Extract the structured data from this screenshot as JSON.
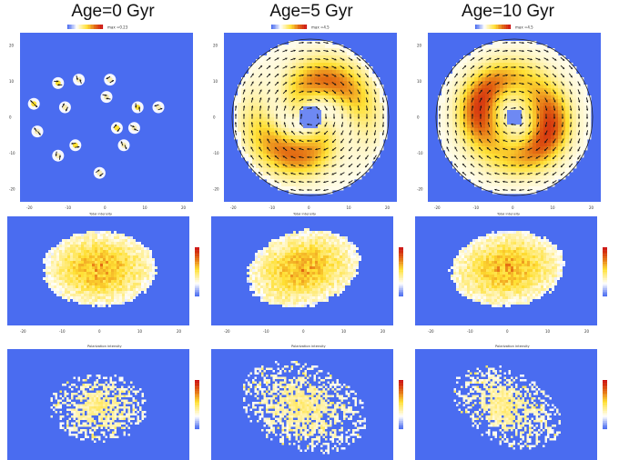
{
  "columns": [
    {
      "title": "Age=0 Gyr",
      "colorbar_max": "max =0.23"
    },
    {
      "title": "Age=5 Gyr",
      "colorbar_max": "max =4.5"
    },
    {
      "title": "Age=10 Gyr",
      "colorbar_max": "max =4.5"
    }
  ],
  "row_titles": {
    "intensity": "Total intensity",
    "polarization": "Polarization intensity"
  },
  "axis_ticks": {
    "top_x": [
      "-20",
      "-10",
      "0",
      "10",
      "20"
    ],
    "top_y": [
      "20",
      "10",
      "0",
      "-10",
      "-20"
    ],
    "mid_x": [
      "-20",
      "-10",
      "0",
      "10",
      "20"
    ]
  },
  "colors": {
    "background": "#4a6cf0",
    "low": "#ffffff",
    "mid": "#ffe033",
    "high": "#e06010",
    "max": "#cc1010",
    "vector": "#111111"
  },
  "chart_data": [
    {
      "type": "heatmap",
      "panel": "velocity-field",
      "age_gyr": 0,
      "field": "star-forming clumps with rotation vectors",
      "n_clumps": 15,
      "max": 0.23,
      "xlim": [
        -25,
        25
      ],
      "ylim": [
        -25,
        25
      ]
    },
    {
      "type": "heatmap",
      "panel": "velocity-field",
      "age_gyr": 5,
      "field": "two-armed spiral",
      "max": 4.5,
      "xlim": [
        -25,
        25
      ],
      "ylim": [
        -25,
        25
      ]
    },
    {
      "type": "heatmap",
      "panel": "velocity-field",
      "age_gyr": 10,
      "field": "wound ring/spiral",
      "max": 4.5,
      "xlim": [
        -25,
        25
      ],
      "ylim": [
        -25,
        25
      ]
    },
    {
      "type": "heatmap",
      "panel": "total-intensity",
      "age_gyr": 0
    },
    {
      "type": "heatmap",
      "panel": "total-intensity",
      "age_gyr": 5
    },
    {
      "type": "heatmap",
      "panel": "total-intensity",
      "age_gyr": 10
    },
    {
      "type": "heatmap",
      "panel": "polarization-intensity",
      "age_gyr": 0
    },
    {
      "type": "heatmap",
      "panel": "polarization-intensity",
      "age_gyr": 5
    },
    {
      "type": "heatmap",
      "panel": "polarization-intensity",
      "age_gyr": 10
    }
  ]
}
